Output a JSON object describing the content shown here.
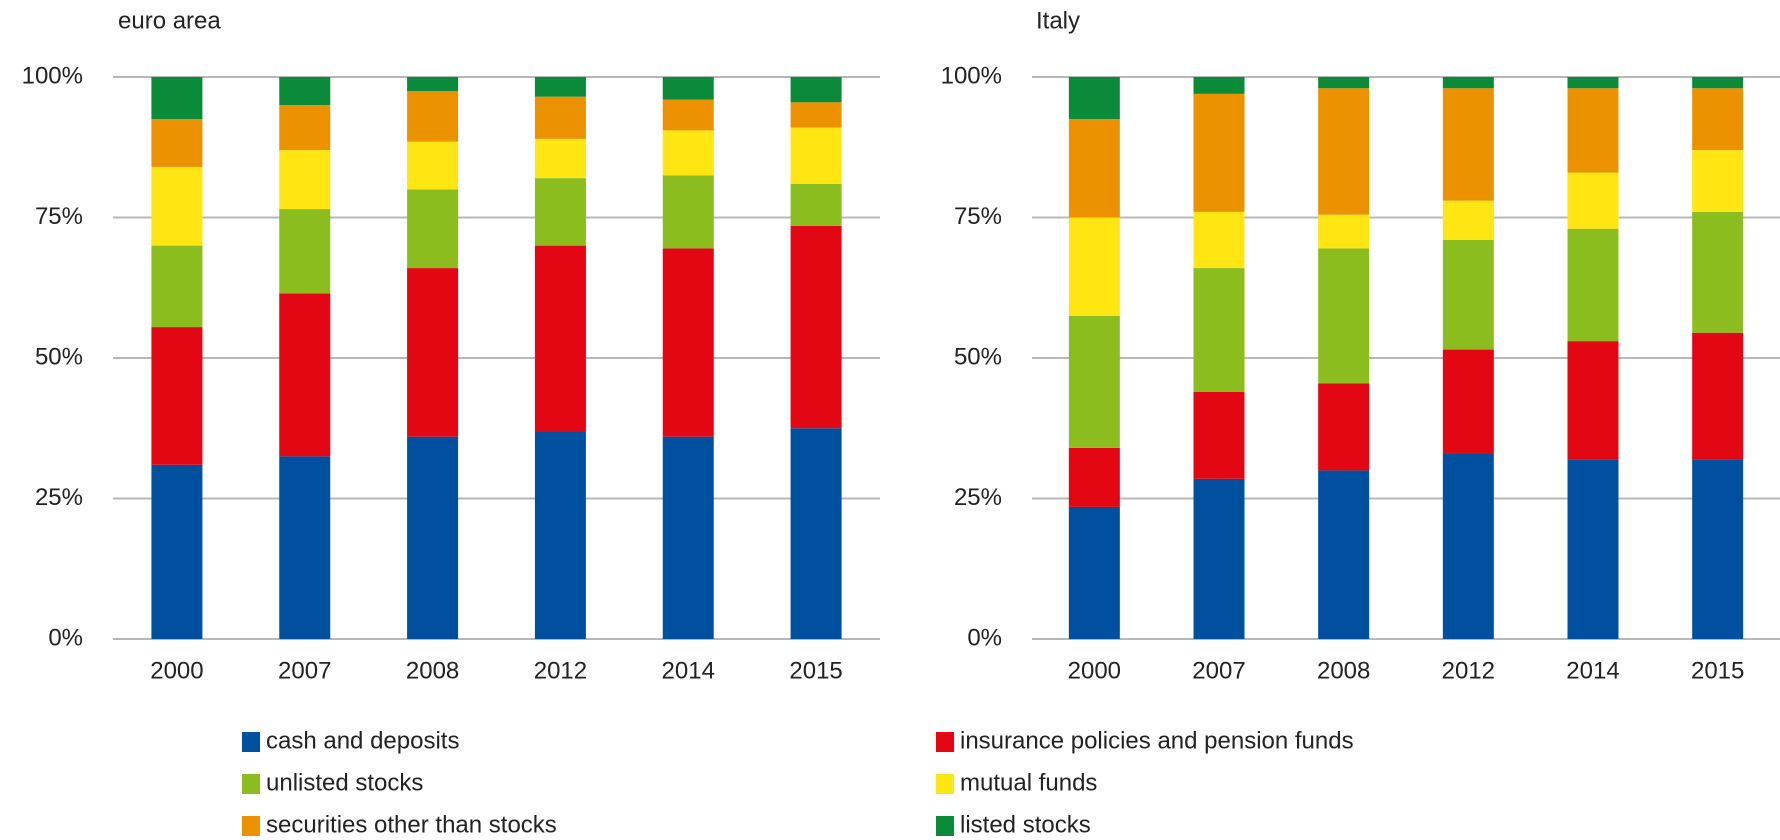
{
  "chart_data": [
    {
      "type": "stacked_bar",
      "title": "euro area",
      "categories": [
        "2000",
        "2007",
        "2008",
        "2012",
        "2014",
        "2015"
      ],
      "series": [
        {
          "values": [
            31,
            32.5,
            36,
            37,
            36,
            37.5
          ]
        },
        {
          "values": [
            24.5,
            29,
            30,
            33,
            33.5,
            36
          ]
        },
        {
          "values": [
            14.5,
            15,
            14,
            12,
            13,
            7.5
          ]
        },
        {
          "values": [
            14,
            10.5,
            8.5,
            7,
            8,
            10
          ]
        },
        {
          "values": [
            8.5,
            8,
            9,
            7.5,
            5.5,
            4.5
          ]
        },
        {
          "values": [
            7.5,
            5,
            2.5,
            3.5,
            4,
            4.5
          ]
        }
      ],
      "ylim": [
        0,
        100
      ],
      "yticks": [
        {
          "value": 0,
          "label": "0%"
        },
        {
          "value": 25,
          "label": "25%"
        },
        {
          "value": 50,
          "label": "50%"
        },
        {
          "value": 75,
          "label": "75%"
        },
        {
          "value": 100,
          "label": "100%"
        }
      ],
      "grid": true
    },
    {
      "type": "stacked_bar",
      "title": "Italy",
      "categories": [
        "2000",
        "2007",
        "2008",
        "2012",
        "2014",
        "2015"
      ],
      "series": [
        {
          "values": [
            23.5,
            28.5,
            30,
            33,
            32,
            32
          ]
        },
        {
          "values": [
            10.5,
            15.5,
            15.5,
            18.5,
            21,
            22.5
          ]
        },
        {
          "values": [
            23.5,
            22,
            24,
            19.5,
            20,
            21.5
          ]
        },
        {
          "values": [
            17.5,
            10,
            6,
            7,
            10,
            11
          ]
        },
        {
          "values": [
            17.5,
            21,
            22.5,
            20,
            15,
            11
          ]
        },
        {
          "values": [
            7.5,
            3,
            2,
            2,
            2,
            2
          ]
        }
      ],
      "ylim": [
        0,
        100
      ],
      "yticks": [
        {
          "value": 0,
          "label": "0%"
        },
        {
          "value": 25,
          "label": "25%"
        },
        {
          "value": 50,
          "label": "50%"
        },
        {
          "value": 75,
          "label": "75%"
        },
        {
          "value": 100,
          "label": "100%"
        }
      ],
      "grid": true
    }
  ],
  "legend": [
    {
      "name": "cash and deposits",
      "color": "#0050a0"
    },
    {
      "name": "insurance policies and pension funds",
      "color": "#e30613"
    },
    {
      "name": "unlisted stocks",
      "color": "#8cbd1e"
    },
    {
      "name": "mutual funds",
      "color": "#ffe512"
    },
    {
      "name": "securities other than stocks",
      "color": "#ec9200"
    },
    {
      "name": "listed stocks",
      "color": "#0b8b3a"
    }
  ]
}
